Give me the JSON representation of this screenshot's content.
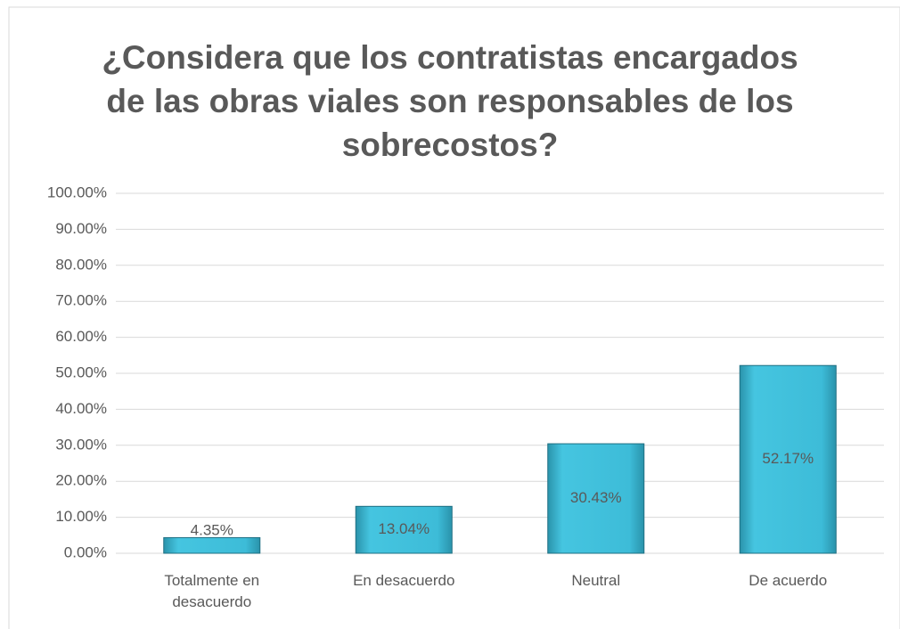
{
  "chart_data": {
    "type": "bar",
    "title": "¿Considera que los contratistas encargados de las obras viales son responsables de los sobrecostos?",
    "categories": [
      "Totalmente en desacuerdo",
      "En desacuerdo",
      "Neutral",
      "De acuerdo"
    ],
    "values": [
      4.35,
      13.04,
      30.43,
      52.17
    ],
    "value_labels": [
      "4.35%",
      "13.04%",
      "30.43%",
      "52.17%"
    ],
    "color": "#3dbcd8",
    "ylim": [
      0,
      100
    ],
    "yticks": [
      {
        "value": 0,
        "label": "0.00%"
      },
      {
        "value": 10,
        "label": "10.00%"
      },
      {
        "value": 20,
        "label": "20.00%"
      },
      {
        "value": 30,
        "label": "30.00%"
      },
      {
        "value": 40,
        "label": "40.00%"
      },
      {
        "value": 50,
        "label": "50.00%"
      },
      {
        "value": 60,
        "label": "60.00%"
      },
      {
        "value": 70,
        "label": "70.00%"
      },
      {
        "value": 80,
        "label": "80.00%"
      },
      {
        "value": 90,
        "label": "90.00%"
      },
      {
        "value": 100,
        "label": "100.00%"
      }
    ],
    "grid": true
  }
}
